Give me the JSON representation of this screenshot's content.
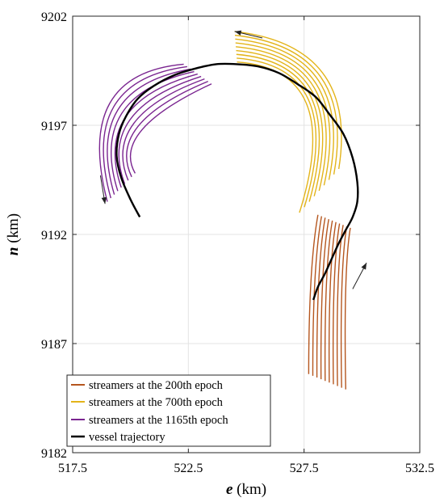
{
  "chart_data": {
    "type": "line",
    "xlabel_var": "e",
    "xlabel_unit": " (km)",
    "ylabel_var": "n",
    "ylabel_unit": " (km)",
    "xlim": [
      517.5,
      532.5
    ],
    "ylim": [
      9182,
      9202
    ],
    "xticks": [
      517.5,
      522.5,
      527.5,
      532.5
    ],
    "xtick_labels": [
      "517.5",
      "522.5",
      "527.5",
      "532.5"
    ],
    "yticks": [
      9182,
      9187,
      9192,
      9197,
      9202
    ],
    "ytick_labels": [
      "9182",
      "9187",
      "9192",
      "9197",
      "9202"
    ],
    "grid": true,
    "legend_position": "bottom-left",
    "legend": [
      {
        "label": "streamers at the 200th epoch",
        "color": "#b5561e"
      },
      {
        "label": "streamers at the 700th epoch",
        "color": "#e3b41a"
      },
      {
        "label": "streamers at the 1165th epoch",
        "color": "#7a2590"
      },
      {
        "label": "vessel trajectory",
        "color": "#000000"
      }
    ],
    "vessel_trajectory": {
      "x": [
        520.4,
        520.0,
        519.6,
        519.4,
        519.5,
        519.8,
        520.3,
        521.0,
        521.9,
        522.8,
        523.7,
        524.6,
        525.5,
        526.4,
        527.2,
        528.0,
        528.6,
        529.2,
        529.6,
        529.8,
        529.8,
        529.6,
        529.3,
        529.0,
        528.7,
        528.4,
        528.1,
        527.9
      ],
      "y": [
        9192.8,
        9193.6,
        9194.6,
        9195.6,
        9196.6,
        9197.4,
        9198.2,
        9198.8,
        9199.3,
        9199.6,
        9199.8,
        9199.8,
        9199.7,
        9199.4,
        9198.9,
        9198.3,
        9197.5,
        9196.6,
        9195.5,
        9194.4,
        9193.5,
        9192.8,
        9192.2,
        9191.6,
        9190.9,
        9190.2,
        9189.6,
        9189.0
      ]
    },
    "streamers_200th_epoch": {
      "head": [
        [
          528.1,
          9192.9
        ],
        [
          529.5,
          9192.3
        ]
      ],
      "mid": [
        [
          527.8,
          9189.9
        ],
        [
          529.3,
          9189.5
        ]
      ],
      "tail": [
        [
          527.7,
          9185.6
        ],
        [
          529.3,
          9184.9
        ]
      ],
      "count": 10
    },
    "streamers_700th_epoch": {
      "head": [
        [
          524.5,
          9201.3
        ],
        [
          524.6,
          9199.9
        ]
      ],
      "mid": [
        [
          528.3,
          9199.4
        ],
        [
          527.6,
          9198.0
        ]
      ],
      "tail": [
        [
          529.0,
          9195.0
        ],
        [
          527.3,
          9193.0
        ]
      ],
      "count": 9
    },
    "streamers_1165th_epoch": {
      "head": [
        [
          522.3,
          9199.8
        ],
        [
          523.5,
          9198.9
        ]
      ],
      "mid": [
        [
          519.1,
          9198.0
        ],
        [
          520.5,
          9196.8
        ]
      ],
      "tail": [
        [
          519.0,
          9193.5
        ],
        [
          520.2,
          9194.8
        ]
      ],
      "count": 9
    },
    "arrows": [
      {
        "from": [
          525.7,
          9201.0
        ],
        "to": [
          524.5,
          9201.3
        ]
      },
      {
        "from": [
          518.7,
          9194.7
        ],
        "to": [
          518.9,
          9193.4
        ]
      },
      {
        "from": [
          529.6,
          9189.5
        ],
        "to": [
          530.2,
          9190.7
        ]
      }
    ]
  }
}
